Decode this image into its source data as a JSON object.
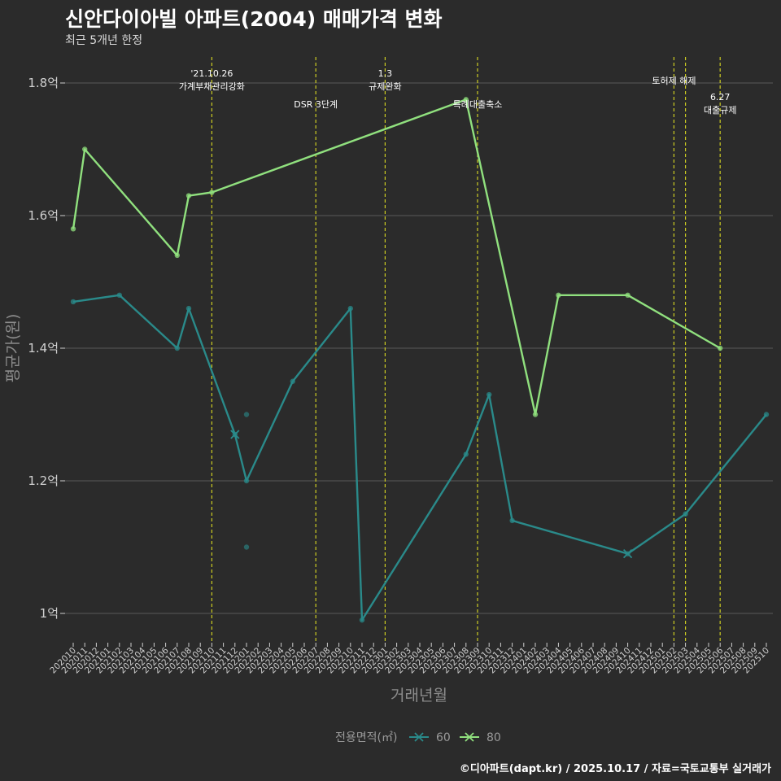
{
  "title": "신안다이아빌 아파트(2004) 매매가격 변화",
  "subtitle": "최근 5개년 한정",
  "footer": "©디아파트(dapt.kr) / 2025.10.17 / 자료=국토교통부 실거래가",
  "colors": {
    "background": "#2b2b2b",
    "grid": "#5a5a5a",
    "series60": "#2a8a8a",
    "series80": "#90e07e",
    "vline": "#cccc22"
  },
  "chart_data": {
    "type": "line",
    "xlabel": "거래년월",
    "ylabel": "평균가(원)",
    "ylim": [
      0.96,
      1.85
    ],
    "yticks": [
      1.0,
      1.2,
      1.4,
      1.6,
      1.8
    ],
    "ytick_labels": [
      "1억",
      "1.2억",
      "1.4억",
      "1.6억",
      "1.8억"
    ],
    "categories": [
      "202010",
      "202011",
      "202012",
      "202101",
      "202102",
      "202103",
      "202104",
      "202105",
      "202106",
      "202107",
      "202108",
      "202109",
      "202110",
      "202111",
      "202112",
      "202201",
      "202202",
      "202203",
      "202204",
      "202205",
      "202206",
      "202207",
      "202208",
      "202209",
      "202210",
      "202211",
      "202212",
      "202301",
      "202302",
      "202303",
      "202304",
      "202305",
      "202306",
      "202307",
      "202308",
      "202309",
      "202310",
      "202311",
      "202312",
      "202401",
      "202402",
      "202403",
      "202404",
      "202405",
      "202406",
      "202407",
      "202408",
      "202409",
      "202410",
      "202411",
      "202412",
      "202501",
      "202502",
      "202503",
      "202504",
      "202505",
      "202506",
      "202507",
      "202508",
      "202509",
      "202510"
    ],
    "legend_title": "전용면적(㎡)",
    "series": [
      {
        "name": "60",
        "color": "#2a8a8a",
        "line": [
          [
            "202010",
            1.47
          ],
          [
            "202102",
            1.48
          ],
          [
            "202107",
            1.4
          ],
          [
            "202108",
            1.46
          ],
          [
            "202112",
            1.27
          ],
          [
            "202201",
            1.2
          ],
          [
            "202205",
            1.35
          ],
          [
            "202210",
            1.46
          ],
          [
            "202211",
            0.99
          ],
          [
            "202308",
            1.24
          ],
          [
            "202310",
            1.33
          ],
          [
            "202312",
            1.14
          ],
          [
            "202410",
            1.09
          ],
          [
            "202503",
            1.15
          ],
          [
            "202510",
            1.3
          ]
        ],
        "extra_points": [
          [
            "202201",
            1.3
          ],
          [
            "202201",
            1.1
          ]
        ],
        "cross_points": [
          [
            "202112",
            1.27
          ],
          [
            "202410",
            1.09
          ]
        ]
      },
      {
        "name": "80",
        "color": "#90e07e",
        "line": [
          [
            "202010",
            1.58
          ],
          [
            "202011",
            1.7
          ],
          [
            "202107",
            1.54
          ],
          [
            "202108",
            1.63
          ],
          [
            "202110",
            1.635
          ],
          [
            "202308",
            1.775
          ],
          [
            "202402",
            1.3
          ],
          [
            "202404",
            1.48
          ],
          [
            "202410",
            1.48
          ],
          [
            "202506",
            1.4
          ]
        ],
        "extra_points": [],
        "cross_points": []
      }
    ],
    "annotations": [
      {
        "x": "202110",
        "lines": [
          "'21.10.26",
          "가계부채관리강화"
        ],
        "level": 1
      },
      {
        "x": "202207",
        "lines": [
          "DSR 3단계"
        ],
        "level": 2
      },
      {
        "x": "202301",
        "lines": [
          "1.3",
          "규제완화"
        ],
        "level": 1
      },
      {
        "x": "202309",
        "lines": [
          "특례대출축소"
        ],
        "level": 2
      },
      {
        "x": "202502",
        "lines": [
          "토허제 해제"
        ],
        "level": 1
      },
      {
        "x": "202503",
        "lines": [],
        "level": 0
      },
      {
        "x": "202506",
        "lines": [
          "6.27",
          "대출규제"
        ],
        "level": 3
      }
    ]
  }
}
